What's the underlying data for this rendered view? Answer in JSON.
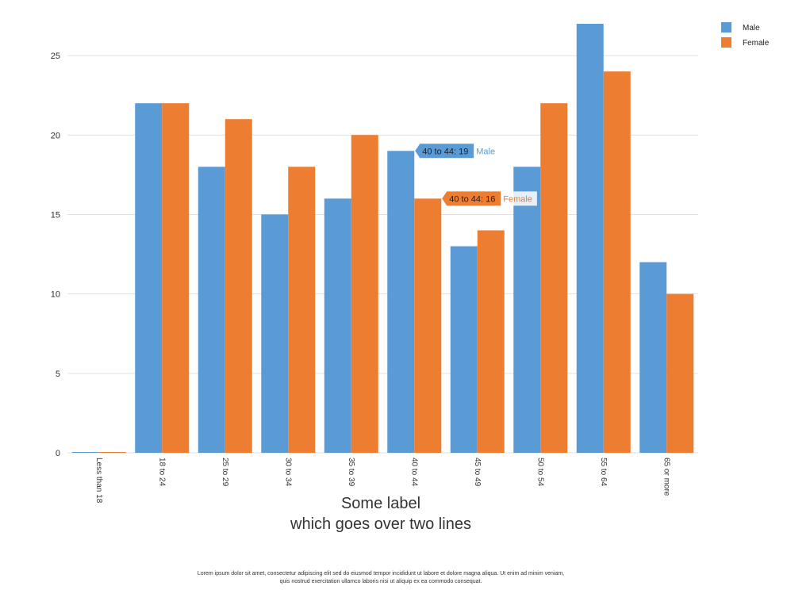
{
  "chart_data": {
    "type": "bar",
    "categories": [
      "Less than 18",
      "18 to 24",
      "25 to 29",
      "30 to 34",
      "35 to 39",
      "40 to 44",
      "45 to 49",
      "50 to 54",
      "55 to 64",
      "65 or more"
    ],
    "series": [
      {
        "name": "Male",
        "color": "#5b9bd5",
        "values": [
          0,
          22,
          18,
          15,
          16,
          19,
          13,
          18,
          27,
          12
        ]
      },
      {
        "name": "Female",
        "color": "#ed7d31",
        "values": [
          0,
          22,
          21,
          18,
          20,
          16,
          14,
          22,
          24,
          10
        ]
      }
    ],
    "ylim": [
      0,
      27
    ],
    "yticks": [
      0,
      5,
      10,
      15,
      20,
      25
    ],
    "xlabel_lines": [
      "Some label",
      "which goes over two lines"
    ],
    "grid": true,
    "legend_position": "top-right",
    "tooltips": [
      {
        "category": "40 to 44",
        "series": "Male",
        "value": 19,
        "text": "40 to 44: 19"
      },
      {
        "category": "40 to 44",
        "series": "Female",
        "value": 16,
        "text": "40 to 44: 16"
      }
    ]
  },
  "caption_lines": [
    "Lorem ipsum dolor sit amet, consectetur adipiscing elit sed do eiusmod tempor incididunt ut labore et dolore magna aliqua. Ut enim ad minim veniam,",
    "quis nostrud exercitation ullamco laboris nisi ut aliquip ex ea commodo consequat."
  ]
}
